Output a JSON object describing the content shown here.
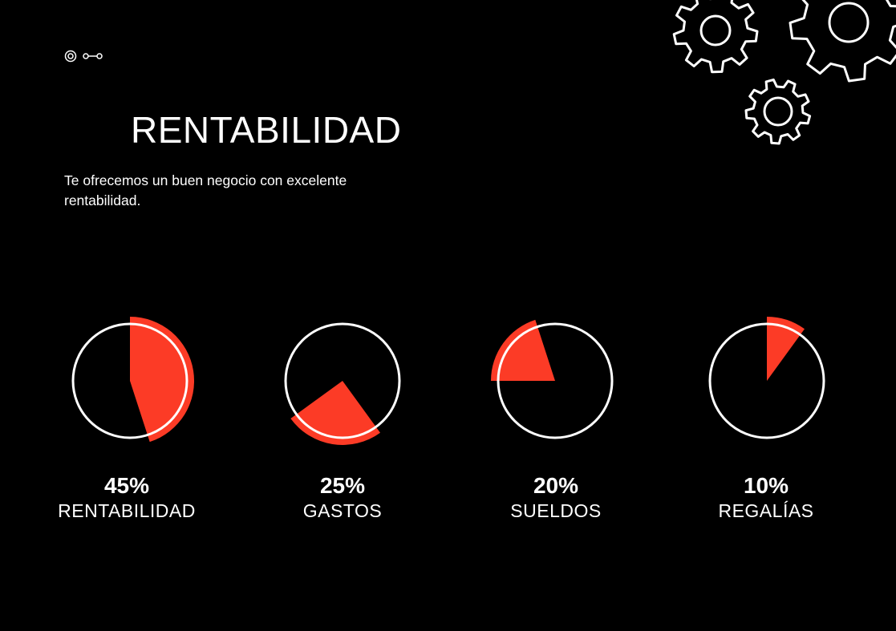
{
  "slide": {
    "title": "RENTABILIDAD",
    "subtitle": "Te ofrecemos un buen negocio con excelente rentabilidad."
  },
  "colors": {
    "background": "#000000",
    "accent": "#fc3b26",
    "text": "#ffffff"
  },
  "icons": {
    "logo": "target-link-icon",
    "decoration": "gears-icon"
  },
  "chart_data": {
    "type": "pie",
    "title": "",
    "items": [
      {
        "value_label": "45%",
        "category": "RENTABILIDAD",
        "percent": 45
      },
      {
        "value_label": "25%",
        "category": "GASTOS",
        "percent": 25
      },
      {
        "value_label": "20%",
        "category": "SUELDOS",
        "percent": 20
      },
      {
        "value_label": "10%",
        "category": "REGALÍAS",
        "percent": 10
      }
    ]
  }
}
